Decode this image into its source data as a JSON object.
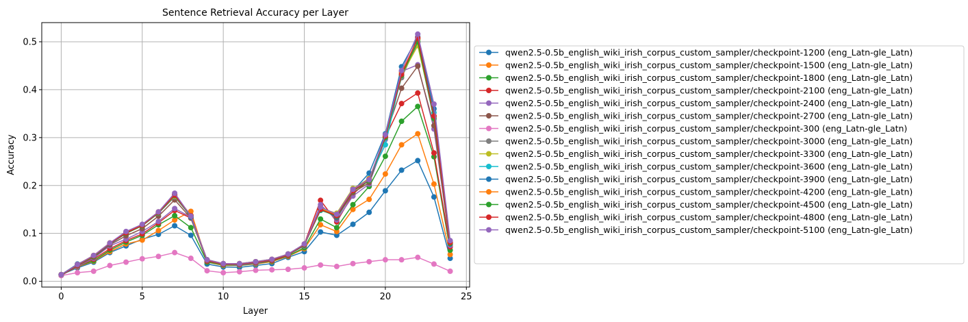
{
  "chart_data": {
    "type": "line",
    "title": "Sentence Retrieval Accuracy per Layer",
    "xlabel": "Layer",
    "ylabel": "Accuracy",
    "xlim": [
      -1.2,
      25.2
    ],
    "ylim": [
      -0.012,
      0.54
    ],
    "xticks": [
      0,
      5,
      10,
      15,
      20,
      25
    ],
    "yticks": [
      0.0,
      0.1,
      0.2,
      0.3,
      0.4,
      0.5
    ],
    "grid": true,
    "legend_position": "outside right",
    "x": [
      0,
      1,
      2,
      3,
      4,
      5,
      6,
      7,
      8,
      9,
      10,
      11,
      12,
      13,
      14,
      15,
      16,
      17,
      18,
      19,
      20,
      21,
      22,
      23,
      24
    ],
    "series": [
      {
        "name": "qwen2.5-0.5b_english_wiki_irish_corpus_custom_sampler/checkpoint-1200 (eng_Latn-gle_Latn)",
        "color": "#1f77b4",
        "values": [
          0.014,
          0.028,
          0.04,
          0.06,
          0.074,
          0.088,
          0.098,
          0.116,
          0.096,
          0.036,
          0.03,
          0.029,
          0.033,
          0.037,
          0.05,
          0.062,
          0.103,
          0.096,
          0.119,
          0.144,
          0.189,
          0.232,
          0.252,
          0.176,
          0.048
        ]
      },
      {
        "name": "qwen2.5-0.5b_english_wiki_irish_corpus_custom_sampler/checkpoint-1500 (eng_Latn-gle_Latn)",
        "color": "#ff7f0e",
        "values": [
          0.014,
          0.03,
          0.042,
          0.062,
          0.078,
          0.086,
          0.106,
          0.128,
          0.146,
          0.04,
          0.033,
          0.033,
          0.036,
          0.041,
          0.052,
          0.068,
          0.118,
          0.104,
          0.15,
          0.171,
          0.224,
          0.285,
          0.308,
          0.203,
          0.056
        ]
      },
      {
        "name": "qwen2.5-0.5b_english_wiki_irish_corpus_custom_sampler/checkpoint-1800 (eng_Latn-gle_Latn)",
        "color": "#2ca02c",
        "values": [
          0.014,
          0.031,
          0.043,
          0.065,
          0.082,
          0.096,
          0.118,
          0.137,
          0.112,
          0.04,
          0.034,
          0.033,
          0.037,
          0.042,
          0.053,
          0.07,
          0.13,
          0.112,
          0.16,
          0.198,
          0.261,
          0.334,
          0.365,
          0.26,
          0.065
        ]
      },
      {
        "name": "qwen2.5-0.5b_english_wiki_irish_corpus_custom_sampler/checkpoint-2100 (eng_Latn-gle_Latn)",
        "color": "#d62728",
        "values": [
          0.014,
          0.031,
          0.046,
          0.068,
          0.085,
          0.099,
          0.122,
          0.148,
          0.132,
          0.042,
          0.035,
          0.034,
          0.038,
          0.043,
          0.054,
          0.078,
          0.169,
          0.124,
          0.182,
          0.212,
          0.301,
          0.371,
          0.393,
          0.268,
          0.072
        ]
      },
      {
        "name": "qwen2.5-0.5b_english_wiki_irish_corpus_custom_sampler/checkpoint-2400 (eng_Latn-gle_Latn)",
        "color": "#9467bd",
        "values": [
          0.014,
          0.031,
          0.048,
          0.074,
          0.088,
          0.104,
          0.125,
          0.152,
          0.134,
          0.043,
          0.035,
          0.034,
          0.038,
          0.044,
          0.055,
          0.074,
          0.16,
          0.128,
          0.178,
          0.203,
          0.296,
          0.438,
          0.452,
          0.318,
          0.075
        ]
      },
      {
        "name": "qwen2.5-0.5b_english_wiki_irish_corpus_custom_sampler/checkpoint-2700 (eng_Latn-gle_Latn)",
        "color": "#8c564b",
        "values": [
          0.012,
          0.032,
          0.05,
          0.076,
          0.095,
          0.11,
          0.136,
          0.17,
          0.132,
          0.043,
          0.035,
          0.035,
          0.039,
          0.044,
          0.055,
          0.075,
          0.155,
          0.132,
          0.185,
          0.206,
          0.303,
          0.403,
          0.449,
          0.325,
          0.078
        ]
      },
      {
        "name": "qwen2.5-0.5b_english_wiki_irish_corpus_custom_sampler/checkpoint-300 (eng_Latn-gle_Latn)",
        "color": "#e377c2",
        "values": [
          0.012,
          0.018,
          0.021,
          0.033,
          0.04,
          0.047,
          0.052,
          0.06,
          0.048,
          0.022,
          0.018,
          0.02,
          0.023,
          0.024,
          0.025,
          0.028,
          0.034,
          0.031,
          0.037,
          0.041,
          0.045,
          0.045,
          0.05,
          0.036,
          0.021
        ]
      },
      {
        "name": "qwen2.5-0.5b_english_wiki_irish_corpus_custom_sampler/checkpoint-3000 (eng_Latn-gle_Latn)",
        "color": "#7f7f7f",
        "values": [
          0.014,
          0.034,
          0.052,
          0.078,
          0.1,
          0.116,
          0.142,
          0.176,
          0.136,
          0.044,
          0.036,
          0.036,
          0.04,
          0.045,
          0.056,
          0.076,
          0.15,
          0.136,
          0.19,
          0.21,
          0.305,
          0.425,
          0.498,
          0.338,
          0.08
        ]
      },
      {
        "name": "qwen2.5-0.5b_english_wiki_irish_corpus_custom_sampler/checkpoint-3300 (eng_Latn-gle_Latn)",
        "color": "#bcbd22",
        "values": [
          0.014,
          0.035,
          0.054,
          0.08,
          0.102,
          0.118,
          0.144,
          0.178,
          0.138,
          0.044,
          0.036,
          0.037,
          0.041,
          0.046,
          0.057,
          0.077,
          0.152,
          0.142,
          0.194,
          0.212,
          0.3,
          0.43,
          0.492,
          0.345,
          0.08
        ]
      },
      {
        "name": "qwen2.5-0.5b_english_wiki_irish_corpus_custom_sampler/checkpoint-3600 (eng_Latn-gle_Latn)",
        "color": "#17becf",
        "values": [
          0.014,
          0.035,
          0.053,
          0.079,
          0.101,
          0.117,
          0.143,
          0.18,
          0.137,
          0.044,
          0.036,
          0.036,
          0.041,
          0.045,
          0.057,
          0.076,
          0.148,
          0.138,
          0.192,
          0.215,
          0.285,
          0.432,
          0.505,
          0.352,
          0.082
        ]
      },
      {
        "name": "qwen2.5-0.5b_english_wiki_irish_corpus_custom_sampler/checkpoint-3900 (eng_Latn-gle_Latn)",
        "color": "#1f77b4",
        "values": [
          0.014,
          0.036,
          0.052,
          0.078,
          0.1,
          0.118,
          0.144,
          0.182,
          0.134,
          0.045,
          0.037,
          0.036,
          0.04,
          0.045,
          0.057,
          0.077,
          0.151,
          0.134,
          0.188,
          0.226,
          0.308,
          0.448,
          0.51,
          0.36,
          0.078
        ]
      },
      {
        "name": "qwen2.5-0.5b_english_wiki_irish_corpus_custom_sampler/checkpoint-4200 (eng_Latn-gle_Latn)",
        "color": "#ff7f0e",
        "values": [
          0.014,
          0.035,
          0.054,
          0.08,
          0.103,
          0.118,
          0.145,
          0.181,
          0.138,
          0.045,
          0.037,
          0.037,
          0.041,
          0.046,
          0.057,
          0.077,
          0.15,
          0.14,
          0.192,
          0.214,
          0.302,
          0.435,
          0.506,
          0.344,
          0.08
        ]
      },
      {
        "name": "qwen2.5-0.5b_english_wiki_irish_corpus_custom_sampler/checkpoint-4500 (eng_Latn-gle_Latn)",
        "color": "#2ca02c",
        "values": [
          0.014,
          0.034,
          0.052,
          0.079,
          0.1,
          0.116,
          0.143,
          0.179,
          0.136,
          0.044,
          0.036,
          0.036,
          0.04,
          0.045,
          0.056,
          0.076,
          0.149,
          0.136,
          0.188,
          0.21,
          0.3,
          0.43,
          0.5,
          0.34,
          0.079
        ]
      },
      {
        "name": "qwen2.5-0.5b_english_wiki_irish_corpus_custom_sampler/checkpoint-4800 (eng_Latn-gle_Latn)",
        "color": "#d62728",
        "values": [
          0.014,
          0.034,
          0.053,
          0.079,
          0.101,
          0.117,
          0.144,
          0.18,
          0.137,
          0.044,
          0.036,
          0.036,
          0.04,
          0.045,
          0.056,
          0.077,
          0.15,
          0.137,
          0.189,
          0.212,
          0.303,
          0.432,
          0.508,
          0.345,
          0.081
        ]
      },
      {
        "name": "qwen2.5-0.5b_english_wiki_irish_corpus_custom_sampler/checkpoint-5100 (eng_Latn-gle_Latn)",
        "color": "#9467bd",
        "values": [
          0.014,
          0.035,
          0.054,
          0.08,
          0.104,
          0.119,
          0.145,
          0.184,
          0.136,
          0.045,
          0.037,
          0.037,
          0.041,
          0.046,
          0.057,
          0.078,
          0.155,
          0.14,
          0.192,
          0.212,
          0.306,
          0.44,
          0.516,
          0.37,
          0.085
        ]
      }
    ]
  }
}
